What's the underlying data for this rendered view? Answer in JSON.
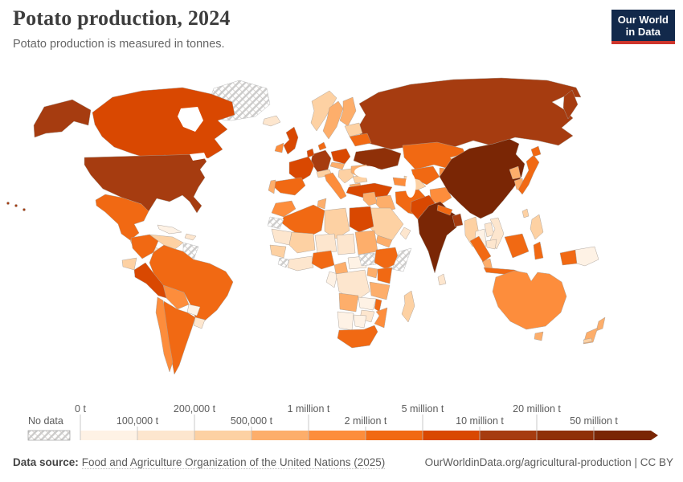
{
  "header": {
    "title": "Potato production, 2024",
    "subtitle": "Potato production is measured in tonnes.",
    "logo_line1": "Our World",
    "logo_line2": "in Data"
  },
  "legend": {
    "no_data_label": "No data"
  },
  "footer": {
    "source_label": "Data source:",
    "source_text": "Food and Agriculture Organization of the United Nations (2025)",
    "credit": "OurWorldinData.org/agricultural-production | CC BY"
  },
  "chart_data": {
    "type": "choropleth",
    "title": "Potato production, 2024",
    "subtitle": "Potato production is measured in tonnes.",
    "unit": "tonnes",
    "year": 2024,
    "legend_ticks": [
      "0 t",
      "100,000 t",
      "200,000 t",
      "500,000 t",
      "1 million t",
      "2 million t",
      "5 million t",
      "10 million t",
      "20 million t",
      "50 million t"
    ],
    "bin_ranges": [
      "0–100,000 t",
      "100,000–200,000 t",
      "200,000–500,000 t",
      "500,000–1 million t",
      "1–2 million t",
      "2–5 million t",
      "5–10 million t",
      "10–20 million t",
      "20–50 million t",
      "50 million t and over"
    ],
    "bin_colors": [
      "#fef2e5",
      "#fde6ce",
      "#fdd1a3",
      "#fdae6b",
      "#fd8d3c",
      "#f16913",
      "#d94801",
      "#a63c10",
      "#8f3008",
      "#7a2605"
    ],
    "no_data": {
      "label": "No data",
      "pattern": "diagonal-hatch"
    },
    "countries": {
      "greenland": "no-data",
      "alaska": 7,
      "canada": 6,
      "usa": 7,
      "hawaii": 7,
      "mexico": 5,
      "guatemala": 3,
      "central-america": 1,
      "cuba": 0,
      "hispaniola": 1,
      "colombia": 5,
      "venezuela": 2,
      "guyanas": "no-data",
      "brazil": 5,
      "bolivia": 4,
      "paraguay": 0,
      "argentina": 5,
      "uruguay": 1,
      "chile": 4,
      "peru": 6,
      "ecuador": 2,
      "iceland": 1,
      "norway": 2,
      "sweden": 3,
      "finland": 3,
      "baltics": 2,
      "belarus": 5,
      "uk": 6,
      "ireland": 4,
      "denmark": 5,
      "germany": 7,
      "benelux": 6,
      "france": 6,
      "spain": 5,
      "portugal": 3,
      "italy": 4,
      "alpine": 2,
      "poland": 6,
      "czech-slovakia": 3,
      "hungary-balkans": 2,
      "romania": 3,
      "bulgaria": 2,
      "greece": 3,
      "ukraine": 8,
      "russia": 7,
      "turkey": 6,
      "caucasus": 4,
      "kazakhstan": 5,
      "uzbekistan": 5,
      "turkmenistan": 2,
      "kyrgyzstan-tajikistan": 4,
      "syria-levant": 3,
      "iraq": 3,
      "iran": 5,
      "afghanistan": 4,
      "pakistan": 6,
      "saudi-arabia": 2,
      "yemen": 3,
      "oman": 1,
      "india": 9,
      "nepal": 5,
      "bangladesh": 7,
      "sri-lanka": 1,
      "china": 9,
      "mongolia": 1,
      "north-korea": 3,
      "south-korea": 3,
      "japan": 5,
      "taiwan": 2,
      "myanmar": 2,
      "thailand": 0,
      "laos": 1,
      "vietnam": 1,
      "cambodia": 1,
      "malaysia": 3,
      "philippines": 2,
      "indonesia": 5,
      "papua-new-guinea": 0,
      "australia": 4,
      "tasmania": 3,
      "new-zealand": 3,
      "new-caledonia": 2,
      "morocco": 4,
      "western-sahara": "no-data",
      "algeria": 5,
      "tunisia": 3,
      "libya": 2,
      "egypt": 6,
      "mauritania": 1,
      "mali": 2,
      "niger": 1,
      "chad": 1,
      "sudan": 3,
      "senegal-guinea": 2,
      "sierra-leone-liberia": "no-data",
      "ivory-ghana": 1,
      "nigeria": 5,
      "cameroon": 3,
      "car": 0,
      "south-sudan": "no-data",
      "ethiopia": 5,
      "somalia": "no-data",
      "kenya": 5,
      "uganda": 3,
      "drc": 1,
      "congo-gabon": 0,
      "tanzania": 3,
      "angola": 3,
      "zambia": 0,
      "malawi": 5,
      "mozambique": 4,
      "zimbabwe": 1,
      "namibia": 0,
      "botswana": 0,
      "south-africa": 5,
      "madagascar": 2
    }
  }
}
